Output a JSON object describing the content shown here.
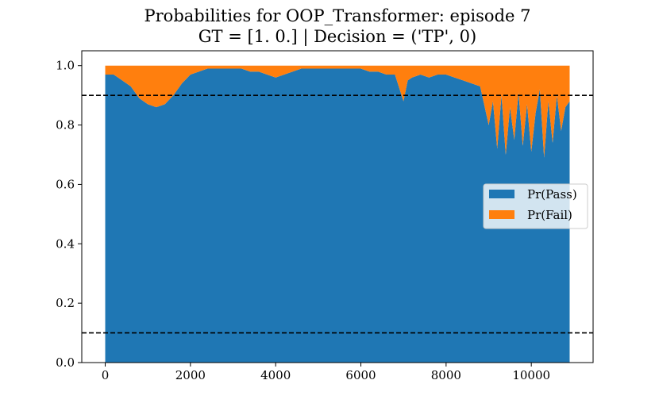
{
  "chart_data": {
    "type": "area",
    "stacked": true,
    "title": "Probabilities for OOP_Transformer: episode 7",
    "subtitle": "GT = [1. 0.] | Decision = ('TP', 0)",
    "xlabel": "",
    "ylabel": "",
    "xlim": [
      -550,
      11450
    ],
    "ylim": [
      0.0,
      1.05
    ],
    "x_ticks": [
      0,
      2000,
      4000,
      6000,
      8000,
      10000
    ],
    "x_tick_labels": [
      "0",
      "2000",
      "4000",
      "6000",
      "8000",
      "10000"
    ],
    "y_ticks": [
      0.0,
      0.2,
      0.4,
      0.6,
      0.8,
      1.0
    ],
    "y_tick_labels": [
      "0.0",
      "0.2",
      "0.4",
      "0.6",
      "0.8",
      "1.0"
    ],
    "grid": false,
    "legend_position": "center-right",
    "thresholds": [
      {
        "y": 0.9,
        "style": "dashed",
        "color": "#000000"
      },
      {
        "y": 0.1,
        "style": "dashed",
        "color": "#000000"
      }
    ],
    "x": [
      0,
      200,
      400,
      600,
      800,
      1000,
      1200,
      1400,
      1600,
      1800,
      2000,
      2200,
      2400,
      2600,
      2800,
      3000,
      3200,
      3400,
      3600,
      3800,
      4000,
      4200,
      4400,
      4600,
      4800,
      5000,
      5200,
      5400,
      5600,
      5800,
      6000,
      6200,
      6400,
      6600,
      6800,
      7000,
      7100,
      7200,
      7400,
      7600,
      7800,
      8000,
      8200,
      8400,
      8600,
      8800,
      9000,
      9100,
      9200,
      9300,
      9400,
      9500,
      9600,
      9700,
      9800,
      9900,
      10000,
      10100,
      10200,
      10300,
      10400,
      10500,
      10600,
      10700,
      10800,
      10900
    ],
    "series": [
      {
        "name": "Pr(Pass)",
        "color": "#1f77b4",
        "values": [
          0.97,
          0.97,
          0.95,
          0.93,
          0.89,
          0.87,
          0.86,
          0.87,
          0.9,
          0.94,
          0.97,
          0.98,
          0.99,
          0.99,
          0.99,
          0.99,
          0.99,
          0.98,
          0.98,
          0.97,
          0.96,
          0.97,
          0.98,
          0.99,
          0.99,
          0.99,
          0.99,
          0.99,
          0.99,
          0.99,
          0.99,
          0.98,
          0.98,
          0.97,
          0.97,
          0.88,
          0.95,
          0.96,
          0.97,
          0.96,
          0.97,
          0.97,
          0.96,
          0.95,
          0.94,
          0.93,
          0.8,
          0.88,
          0.72,
          0.9,
          0.7,
          0.86,
          0.75,
          0.91,
          0.73,
          0.87,
          0.71,
          0.84,
          0.92,
          0.69,
          0.88,
          0.74,
          0.9,
          0.78,
          0.86,
          0.88
        ]
      },
      {
        "name": "Pr(Fail)",
        "color": "#ff7f0e",
        "values": [
          0.03,
          0.03,
          0.05,
          0.07,
          0.11,
          0.13,
          0.14,
          0.13,
          0.1,
          0.06,
          0.03,
          0.02,
          0.01,
          0.01,
          0.01,
          0.01,
          0.01,
          0.02,
          0.02,
          0.03,
          0.04,
          0.03,
          0.02,
          0.01,
          0.01,
          0.01,
          0.01,
          0.01,
          0.01,
          0.01,
          0.01,
          0.02,
          0.02,
          0.03,
          0.03,
          0.12,
          0.05,
          0.04,
          0.03,
          0.04,
          0.03,
          0.03,
          0.04,
          0.05,
          0.06,
          0.07,
          0.2,
          0.12,
          0.28,
          0.1,
          0.3,
          0.14,
          0.25,
          0.09,
          0.27,
          0.13,
          0.29,
          0.16,
          0.08,
          0.31,
          0.12,
          0.26,
          0.1,
          0.22,
          0.14,
          0.12
        ]
      }
    ]
  }
}
